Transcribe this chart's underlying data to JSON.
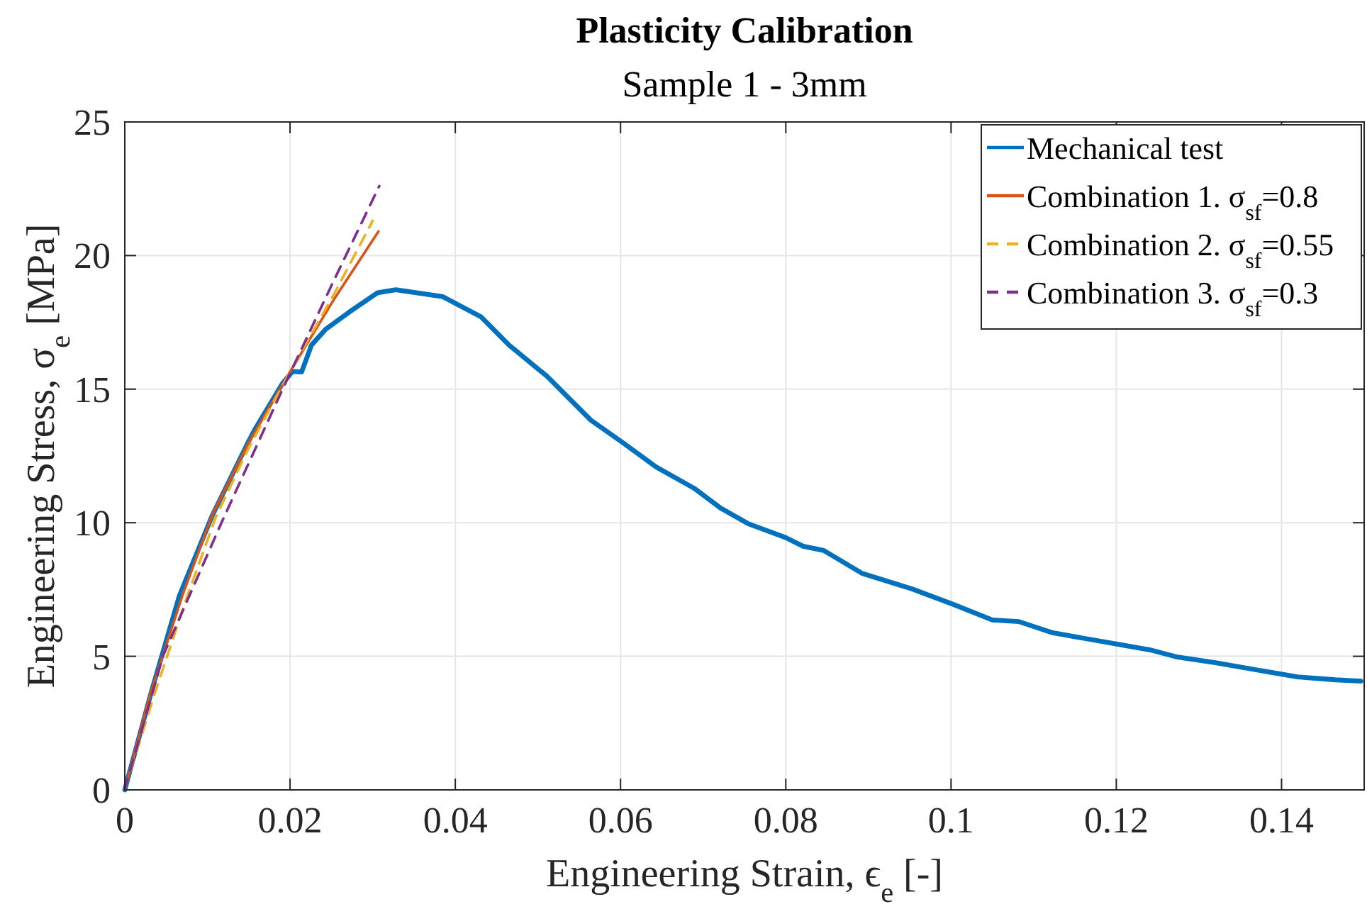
{
  "chart_data": {
    "type": "line",
    "title": "Plasticity Calibration",
    "subtitle": "Sample 1 - 3mm",
    "xlabel": "Engineering Strain, ϵ$_{e}$ [-]",
    "ylabel": "Engineering Stress, σ$_{e}$ [MPa]",
    "xlim": [
      0,
      0.15
    ],
    "xticks": [
      0,
      0.02,
      0.04,
      0.06,
      0.08,
      0.1,
      0.12,
      0.14
    ],
    "ylim": [
      0,
      25
    ],
    "yticks": [
      0,
      5,
      10,
      15,
      20,
      25
    ],
    "grid": true,
    "legend": "top right",
    "marker": "none",
    "series": [
      {
        "name": "Mechanical test",
        "color": "#0072bd",
        "line_style": "solid",
        "x": [
          0,
          0.0032,
          0.0066,
          0.0106,
          0.0149,
          0.0157,
          0.0191,
          0.0203,
          0.0214,
          0.0226,
          0.0243,
          0.0271,
          0.0306,
          0.0328,
          0.0385,
          0.0431,
          0.0465,
          0.0511,
          0.0564,
          0.0603,
          0.0643,
          0.0689,
          0.0721,
          0.0754,
          0.08,
          0.0821,
          0.0846,
          0.0892,
          0.0952,
          0.1003,
          0.105,
          0.1082,
          0.1123,
          0.1202,
          0.1241,
          0.1274,
          0.132,
          0.1398,
          0.1419,
          0.1465,
          0.1496
        ],
        "values": [
          0,
          3.65,
          7.26,
          10.28,
          12.99,
          13.47,
          15.22,
          15.66,
          15.64,
          16.65,
          17.24,
          17.87,
          18.61,
          18.72,
          18.46,
          17.71,
          16.65,
          15.48,
          13.84,
          12.99,
          12.09,
          11.29,
          10.55,
          9.97,
          9.44,
          9.12,
          8.96,
          8.11,
          7.53,
          6.94,
          6.36,
          6.3,
          5.88,
          5.45,
          5.24,
          4.97,
          4.76,
          4.34,
          4.23,
          4.12,
          4.07
        ]
      },
      {
        "name": "Combination 1. σ$_{sf}$=0.8",
        "color": "#d95319",
        "line_style": "solid",
        "x": [
          0,
          0.003,
          0.007,
          0.0106,
          0.015,
          0.0201,
          0.0254,
          0.0307
        ],
        "values": [
          0,
          3.5,
          7.3,
          10.3,
          13.0,
          15.7,
          18.4,
          20.9
        ]
      },
      {
        "name": "Combination 2. σ$_{sf}$=0.55",
        "color": "#edb120",
        "line_style": "dashed",
        "x": [
          0,
          0.0035,
          0.0075,
          0.011,
          0.015,
          0.0201,
          0.0254,
          0.03
        ],
        "values": [
          0,
          3.5,
          7.2,
          10.2,
          12.8,
          15.7,
          18.6,
          21.3
        ]
      },
      {
        "name": "Combination 3. σ$_{sf}$=0.3",
        "color": "#7e2f8e",
        "line_style": "dashed",
        "x": [
          0,
          0.0046,
          0.0117,
          0.0191,
          0.0252,
          0.0308
        ],
        "values": [
          0,
          5,
          10,
          15,
          19,
          22.6
        ]
      }
    ]
  }
}
